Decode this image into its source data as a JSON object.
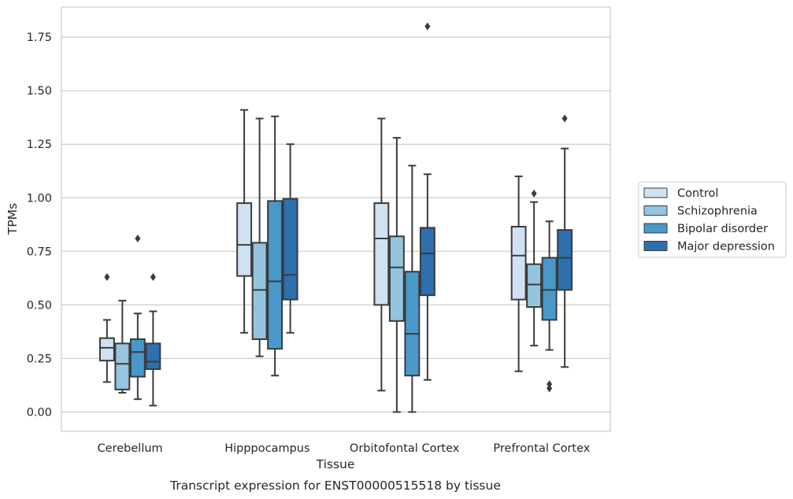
{
  "chart_data": {
    "type": "boxplot",
    "title": "",
    "caption": "Transcript expression for ENST00000515518 by tissue",
    "xlabel": "Tissue",
    "ylabel": "TPMs",
    "ylim": [
      -0.09,
      1.89
    ],
    "yticks": [
      0.0,
      0.25,
      0.5,
      0.75,
      1.0,
      1.25,
      1.5,
      1.75
    ],
    "ytick_labels": [
      "0.00",
      "0.25",
      "0.50",
      "0.75",
      "1.00",
      "1.25",
      "1.50",
      "1.75"
    ],
    "grid": "horizontal",
    "legend_position": "right",
    "categories": [
      "Cerebellum",
      "Hipppocampus",
      "Orbitofontal Cortex",
      "Prefrontal Cortex"
    ],
    "series": [
      {
        "name": "Control",
        "color": "#d0e1f2",
        "boxes": [
          {
            "whislo": 0.14,
            "q1": 0.24,
            "med": 0.3,
            "q3": 0.345,
            "whishi": 0.43,
            "fliers": [
              0.63
            ]
          },
          {
            "whislo": 0.37,
            "q1": 0.635,
            "med": 0.78,
            "q3": 0.975,
            "whishi": 1.41,
            "fliers": []
          },
          {
            "whislo": 0.1,
            "q1": 0.5,
            "med": 0.81,
            "q3": 0.975,
            "whishi": 1.37,
            "fliers": []
          },
          {
            "whislo": 0.19,
            "q1": 0.525,
            "med": 0.73,
            "q3": 0.865,
            "whishi": 1.1,
            "fliers": []
          }
        ]
      },
      {
        "name": "Schizophrenia",
        "color": "#94c4df",
        "boxes": [
          {
            "whislo": 0.09,
            "q1": 0.105,
            "med": 0.225,
            "q3": 0.32,
            "whishi": 0.52,
            "fliers": []
          },
          {
            "whislo": 0.26,
            "q1": 0.34,
            "med": 0.57,
            "q3": 0.79,
            "whishi": 1.37,
            "fliers": []
          },
          {
            "whislo": 0.0,
            "q1": 0.425,
            "med": 0.675,
            "q3": 0.82,
            "whishi": 1.28,
            "fliers": []
          },
          {
            "whislo": 0.31,
            "q1": 0.49,
            "med": 0.595,
            "q3": 0.69,
            "whishi": 0.98,
            "fliers": [
              1.02
            ]
          }
        ]
      },
      {
        "name": "Bipolar disorder",
        "color": "#4a98c9",
        "boxes": [
          {
            "whislo": 0.06,
            "q1": 0.165,
            "med": 0.28,
            "q3": 0.34,
            "whishi": 0.46,
            "fliers": [
              0.81
            ]
          },
          {
            "whislo": 0.17,
            "q1": 0.295,
            "med": 0.61,
            "q3": 0.985,
            "whishi": 1.38,
            "fliers": []
          },
          {
            "whislo": 0.0,
            "q1": 0.17,
            "med": 0.365,
            "q3": 0.655,
            "whishi": 1.15,
            "fliers": []
          },
          {
            "whislo": 0.29,
            "q1": 0.43,
            "med": 0.57,
            "q3": 0.72,
            "whishi": 0.89,
            "fliers": [
              0.11,
              0.13
            ]
          }
        ]
      },
      {
        "name": "Major depression",
        "color": "#2e6fae",
        "boxes": [
          {
            "whislo": 0.03,
            "q1": 0.2,
            "med": 0.235,
            "q3": 0.32,
            "whishi": 0.47,
            "fliers": [
              0.63
            ]
          },
          {
            "whislo": 0.37,
            "q1": 0.525,
            "med": 0.64,
            "q3": 0.995,
            "whishi": 1.25,
            "fliers": []
          },
          {
            "whislo": 0.15,
            "q1": 0.545,
            "med": 0.74,
            "q3": 0.86,
            "whishi": 1.11,
            "fliers": [
              1.8
            ]
          },
          {
            "whislo": 0.21,
            "q1": 0.57,
            "med": 0.72,
            "q3": 0.85,
            "whishi": 1.23,
            "fliers": [
              1.37
            ]
          }
        ]
      }
    ]
  }
}
